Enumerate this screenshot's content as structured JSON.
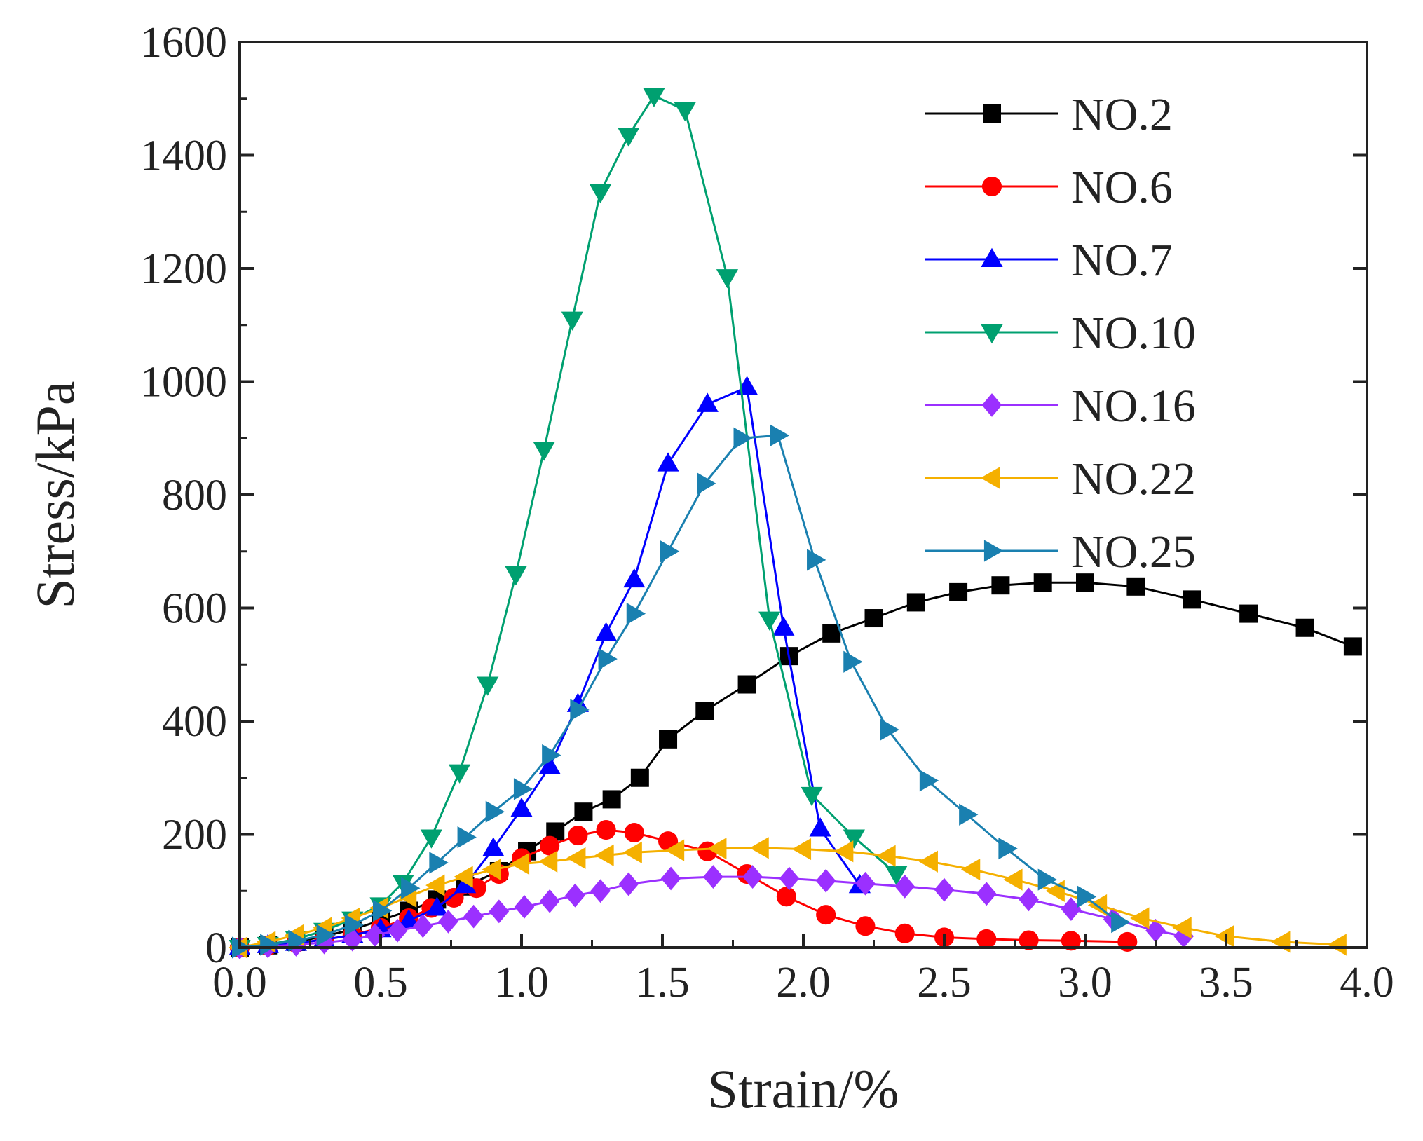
{
  "chart_data": {
    "type": "line",
    "title": "",
    "xlabel": "Strain/%",
    "ylabel": "Stress/kPa",
    "xlim": [
      0,
      4.0
    ],
    "ylim": [
      0,
      1600
    ],
    "xticks": [
      "0.0",
      "0.5",
      "1.0",
      "1.5",
      "2.0",
      "2.5",
      "3.0",
      "3.5",
      "4.0"
    ],
    "yticks": [
      "0",
      "200",
      "400",
      "600",
      "800",
      "1000",
      "1200",
      "1400",
      "1600"
    ],
    "grid": false,
    "legend_position": "top-right",
    "series": [
      {
        "name": "NO.2",
        "color": "#000000",
        "marker": "square",
        "x": [
          0.0,
          0.1,
          0.2,
          0.3,
          0.4,
          0.5,
          0.6,
          0.7,
          0.8,
          0.92,
          1.02,
          1.12,
          1.22,
          1.32,
          1.42,
          1.52,
          1.65,
          1.8,
          1.95,
          2.1,
          2.25,
          2.4,
          2.55,
          2.7,
          2.85,
          3.0,
          3.18,
          3.38,
          3.58,
          3.78,
          3.95
        ],
        "y": [
          0,
          4,
          10,
          20,
          32,
          48,
          65,
          85,
          108,
          135,
          170,
          205,
          240,
          262,
          300,
          368,
          418,
          465,
          515,
          555,
          582,
          610,
          628,
          640,
          645,
          645,
          638,
          615,
          590,
          565,
          532
        ]
      },
      {
        "name": "NO.6",
        "color": "#ff0000",
        "marker": "circle",
        "x": [
          0.0,
          0.1,
          0.2,
          0.3,
          0.4,
          0.5,
          0.6,
          0.68,
          0.76,
          0.84,
          0.92,
          1.0,
          1.1,
          1.2,
          1.3,
          1.4,
          1.52,
          1.66,
          1.8,
          1.94,
          2.08,
          2.22,
          2.36,
          2.5,
          2.65,
          2.8,
          2.95,
          3.15
        ],
        "y": [
          0,
          3,
          8,
          14,
          22,
          35,
          52,
          70,
          88,
          105,
          130,
          158,
          180,
          198,
          208,
          203,
          188,
          170,
          130,
          90,
          58,
          38,
          25,
          18,
          15,
          13,
          12,
          10
        ]
      },
      {
        "name": "NO.7",
        "color": "#0000ff",
        "marker": "triangle-up",
        "x": [
          0.0,
          0.1,
          0.2,
          0.3,
          0.4,
          0.5,
          0.6,
          0.7,
          0.8,
          0.9,
          1.0,
          1.1,
          1.2,
          1.3,
          1.4,
          1.52,
          1.66,
          1.8,
          1.93,
          2.06,
          2.2
        ],
        "y": [
          0,
          4,
          8,
          14,
          22,
          32,
          48,
          70,
          110,
          175,
          245,
          320,
          430,
          555,
          650,
          855,
          960,
          990,
          565,
          210,
          110
        ]
      },
      {
        "name": "NO.10",
        "color": "#00a070",
        "marker": "triangle-down",
        "x": [
          0.0,
          0.1,
          0.2,
          0.3,
          0.4,
          0.5,
          0.58,
          0.68,
          0.78,
          0.88,
          0.98,
          1.08,
          1.18,
          1.28,
          1.38,
          1.47,
          1.58,
          1.73,
          1.88,
          2.03,
          2.18,
          2.33
        ],
        "y": [
          0,
          5,
          15,
          30,
          50,
          75,
          115,
          195,
          310,
          465,
          660,
          880,
          1110,
          1335,
          1435,
          1505,
          1480,
          1185,
          580,
          270,
          195,
          130
        ]
      },
      {
        "name": "NO.16",
        "color": "#9b30ff",
        "marker": "diamond",
        "x": [
          0.0,
          0.1,
          0.2,
          0.3,
          0.4,
          0.48,
          0.56,
          0.65,
          0.74,
          0.83,
          0.92,
          1.01,
          1.1,
          1.19,
          1.28,
          1.38,
          1.53,
          1.68,
          1.82,
          1.95,
          2.08,
          2.22,
          2.36,
          2.5,
          2.65,
          2.8,
          2.95,
          3.1,
          3.25,
          3.35
        ],
        "y": [
          0,
          2,
          5,
          9,
          14,
          22,
          30,
          38,
          46,
          55,
          64,
          72,
          82,
          92,
          100,
          112,
          122,
          125,
          125,
          122,
          118,
          113,
          108,
          102,
          95,
          85,
          68,
          50,
          30,
          20
        ]
      },
      {
        "name": "NO.22",
        "color": "#f5b000",
        "marker": "triangle-left",
        "x": [
          0.0,
          0.1,
          0.2,
          0.3,
          0.4,
          0.5,
          0.6,
          0.7,
          0.8,
          0.9,
          1.0,
          1.1,
          1.2,
          1.3,
          1.4,
          1.55,
          1.7,
          1.85,
          2.0,
          2.15,
          2.3,
          2.45,
          2.6,
          2.75,
          2.9,
          3.05,
          3.2,
          3.35,
          3.5,
          3.7,
          3.9
        ],
        "y": [
          0,
          10,
          22,
          35,
          52,
          70,
          90,
          110,
          125,
          138,
          148,
          152,
          158,
          163,
          168,
          172,
          175,
          176,
          174,
          170,
          162,
          152,
          138,
          120,
          100,
          75,
          52,
          35,
          20,
          10,
          5
        ]
      },
      {
        "name": "NO.25",
        "color": "#1a80b0",
        "marker": "triangle-right",
        "x": [
          0.0,
          0.1,
          0.2,
          0.3,
          0.4,
          0.5,
          0.6,
          0.7,
          0.8,
          0.9,
          1.0,
          1.1,
          1.2,
          1.3,
          1.4,
          1.52,
          1.65,
          1.78,
          1.91,
          2.04,
          2.17,
          2.3,
          2.44,
          2.58,
          2.72,
          2.86,
          3.0,
          3.12
        ],
        "y": [
          0,
          5,
          12,
          22,
          40,
          65,
          105,
          150,
          195,
          240,
          280,
          340,
          420,
          510,
          590,
          700,
          820,
          900,
          905,
          685,
          505,
          385,
          295,
          235,
          175,
          120,
          90,
          45
        ]
      }
    ]
  }
}
